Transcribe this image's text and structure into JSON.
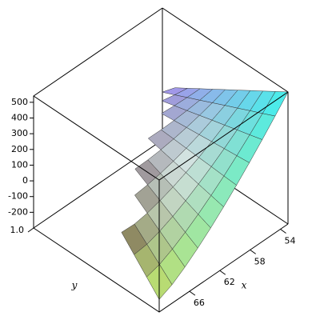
{
  "chart_data": {
    "type": "surface",
    "xlabel": "x",
    "ylabel": "y",
    "x": [
      53,
      54.7,
      56.4,
      58.1,
      59.8,
      61.5,
      63.2,
      64.9,
      66.6,
      68.3,
      70
    ],
    "y": [
      0,
      0.1,
      0.2,
      0.3,
      0.4,
      0.5,
      0.6,
      0.7,
      0.8,
      0.9,
      1.0
    ],
    "z": [
      [
        540,
        490,
        439,
        389,
        338,
        288,
        237,
        187,
        136,
        86,
        35
      ],
      [
        443,
        406,
        370,
        333,
        297,
        260,
        223,
        187,
        150,
        114,
        null
      ],
      [
        349,
        326,
        304,
        281,
        259,
        236,
        213,
        191,
        168,
        null,
        null
      ],
      [
        258,
        249,
        241,
        232,
        223,
        215,
        206,
        197,
        null,
        null,
        null
      ],
      [
        171,
        176,
        182,
        187,
        192,
        198,
        203,
        null,
        null,
        null,
        null
      ],
      [
        89,
        108,
        127,
        147,
        166,
        185,
        204,
        null,
        null,
        null,
        null
      ],
      [
        11,
        44,
        77,
        111,
        144,
        177,
        null,
        null,
        null,
        null,
        null
      ],
      [
        -61,
        -14,
        33,
        81,
        128,
        175,
        null,
        null,
        null,
        null,
        null
      ],
      [
        -126,
        -65,
        -4,
        57,
        118,
        null,
        null,
        null,
        null,
        null,
        null
      ],
      [
        -182,
        -107,
        -32,
        43,
        null,
        null,
        null,
        null,
        null,
        null,
        null
      ],
      [
        -220,
        -131,
        -42,
        47,
        null,
        null,
        null,
        null,
        null,
        null,
        null
      ]
    ],
    "xlim": [
      53,
      70
    ],
    "ylim": [
      0,
      1.0
    ],
    "zlim": [
      -300,
      540
    ],
    "xticks": [
      54,
      58,
      62,
      66
    ],
    "yticks": [
      {
        "value": 1.0,
        "label": "1.0"
      }
    ],
    "zticks": [
      500,
      400,
      300,
      200,
      100,
      0,
      -100,
      -200
    ]
  }
}
